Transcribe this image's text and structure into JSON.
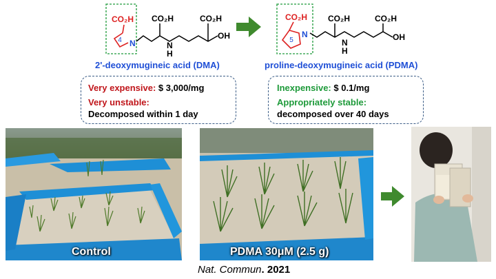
{
  "top": {
    "dma": {
      "group_label": "CO₂H",
      "ring_atom": "N",
      "ring_size": "4",
      "acid1": "CO₂H",
      "acid2": "CO₂H",
      "nh": "N",
      "nh_h": "H",
      "oh": "OH",
      "name": "2'-deoxymugineic acid (DMA)"
    },
    "pdma": {
      "group_label": "CO₂H",
      "ring_atom": "N",
      "ring_size": "5",
      "acid1": "CO₂H",
      "acid2": "CO₂H",
      "nh": "N",
      "nh_h": "H",
      "oh": "OH",
      "name": "proline-deoxymugineic acid (PDMA)"
    }
  },
  "boxes": {
    "dma": {
      "cost_label": "Very expensive:",
      "cost_value": "$ 3,000/mg",
      "stability_label": "Very unstable:",
      "stability_value": "Decomposed within 1 day"
    },
    "pdma": {
      "cost_label": "Inexpensive:",
      "cost_value": "$ 0.1/mg",
      "stability_label": "Appropriately stable:",
      "stability_value": "decomposed over 40 days"
    }
  },
  "photos": {
    "control_caption": "Control",
    "pdma_caption": "PDMA 30μM (2.5 g)"
  },
  "citation": {
    "journal": "Nat. Commun",
    "dot": ".",
    "year": "2021"
  },
  "colors": {
    "arrow": "#3f8a2e",
    "blue_name": "#1f4fd6",
    "red": "#c0161b",
    "green": "#1e9a3a",
    "tarp": "#1e8fd6"
  }
}
